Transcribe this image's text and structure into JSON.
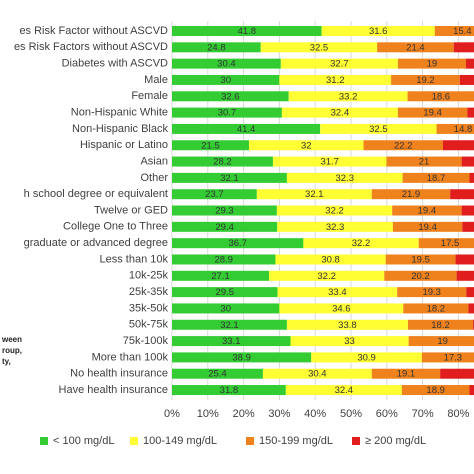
{
  "chart_data": {
    "type": "stacked_barh",
    "categories": [
      "es Risk Factor without ASCVD",
      "es Risk Factors without ASCVD",
      "Diabetes with ASCVD",
      "Male",
      "Female",
      "Non-Hispanic White",
      "Non-Hispanic Black",
      "Hispanic or Latino",
      "Asian",
      "Other",
      "h school degree or equivalent",
      "Twelve or GED",
      "College One to Three",
      "graduate or advanced degree",
      "Less than 10k",
      "10k-25k",
      "25k-35k",
      "35k-50k",
      "50k-75k",
      "75k-100k",
      "More than 100k",
      "No health insurance",
      "Have health insurance"
    ],
    "series": [
      {
        "name": "< 100 mg/dL",
        "color": "#33cc33",
        "show_labels": true,
        "values": [
          41.8,
          24.8,
          30.4,
          30,
          32.6,
          30.7,
          41.4,
          21.5,
          28.2,
          32.1,
          23.7,
          29.3,
          29.4,
          36.7,
          28.9,
          27.1,
          29.5,
          30,
          32.1,
          33.1,
          38.9,
          25.4,
          31.8
        ]
      },
      {
        "name": "100-149 mg/dL",
        "color": "#ffff33",
        "show_labels": true,
        "values": [
          31.6,
          32.5,
          32.7,
          31.2,
          33.2,
          32.4,
          32.5,
          32,
          31.7,
          32.3,
          32.1,
          32.2,
          32.3,
          32.2,
          30.8,
          32.2,
          33.4,
          34.6,
          33.8,
          33,
          30.9,
          30.4,
          32.4
        ]
      },
      {
        "name": "150-199 mg/dL",
        "color": "#f0821e",
        "show_labels": true,
        "values": [
          15.4,
          21.4,
          19,
          19.2,
          18.6,
          19.4,
          14.8,
          22.2,
          21,
          18.7,
          21.9,
          19.4,
          19.4,
          17.5,
          19.5,
          20.2,
          19.3,
          18.2,
          18.2,
          19,
          17.3,
          19.1,
          18.9
        ]
      },
      {
        "name": "≥ 200 mg/dL",
        "color": "#e01e1e",
        "show_labels": false,
        "values": [
          11.2,
          21.3,
          17.9,
          19.6,
          15.6,
          17.5,
          11.3,
          24.3,
          19.1,
          16.9,
          22.3,
          19.1,
          18.9,
          13.6,
          20.8,
          20.5,
          17.8,
          17.2,
          15.9,
          14.9,
          12.9,
          25.1,
          16.9
        ]
      }
    ],
    "xlim": [
      0,
      100
    ],
    "xticks": [
      {
        "value": 0,
        "label": "0%"
      },
      {
        "value": 10,
        "label": "10%"
      },
      {
        "value": 20,
        "label": "20%"
      },
      {
        "value": 30,
        "label": "30%"
      },
      {
        "value": 40,
        "label": "40%"
      },
      {
        "value": 50,
        "label": "50%"
      },
      {
        "value": 60,
        "label": "60%"
      },
      {
        "value": 70,
        "label": "70%"
      },
      {
        "value": 80,
        "label": "80%"
      }
    ],
    "grid": true,
    "legend": "bottom",
    "annotations": [
      "ween",
      "roup,",
      "ty,"
    ]
  }
}
